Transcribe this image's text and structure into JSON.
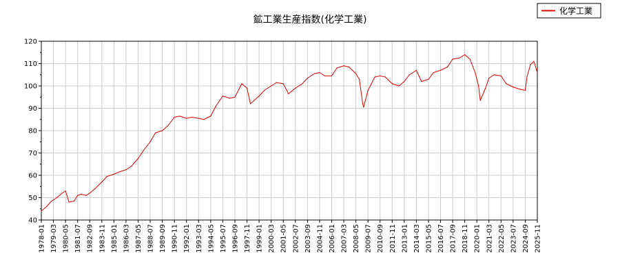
{
  "chart_data": {
    "type": "line",
    "title": "鉱工業生産指数(化学工業)",
    "xlabel": "",
    "ylabel": "",
    "ylim": [
      40,
      120
    ],
    "y_ticks": [
      "40",
      "50",
      "60",
      "70",
      "80",
      "90",
      "100",
      "110",
      "120"
    ],
    "x_ticks": [
      "1978-01",
      "1979-03",
      "1980-05",
      "1981-07",
      "1982-09",
      "1983-11",
      "1985-01",
      "1986-03",
      "1987-05",
      "1988-07",
      "1989-09",
      "1990-11",
      "1992-01",
      "1993-03",
      "1994-05",
      "1995-07",
      "1996-09",
      "1997-11",
      "1999-01",
      "2000-03",
      "2001-05",
      "2002-07",
      "2003-09",
      "2004-11",
      "2006-01",
      "2007-03",
      "2008-05",
      "2009-07",
      "2010-09",
      "2011-11",
      "2013-01",
      "2014-03",
      "2015-05",
      "2016-07",
      "2017-09",
      "2018-11",
      "2020-01",
      "2021-03",
      "2022-05",
      "2023-07",
      "2024-09",
      "2025-11"
    ],
    "x_range": [
      "1978-01",
      "2025-11"
    ],
    "grid": true,
    "legend_position": "top-right",
    "series": [
      {
        "name": "化学工業",
        "color": "#dd0000",
        "points": [
          [
            "1978-01",
            44.0
          ],
          [
            "1978-07",
            46.0
          ],
          [
            "1979-01",
            48.5
          ],
          [
            "1979-07",
            50.0
          ],
          [
            "1980-01",
            52.0
          ],
          [
            "1980-05",
            53.0
          ],
          [
            "1980-09",
            48.0
          ],
          [
            "1981-03",
            48.5
          ],
          [
            "1981-07",
            51.0
          ],
          [
            "1981-11",
            51.5
          ],
          [
            "1982-05",
            51.0
          ],
          [
            "1982-09",
            52.0
          ],
          [
            "1983-03",
            54.0
          ],
          [
            "1983-11",
            57.0
          ],
          [
            "1984-05",
            59.5
          ],
          [
            "1985-01",
            60.5
          ],
          [
            "1985-07",
            61.5
          ],
          [
            "1986-03",
            62.5
          ],
          [
            "1986-09",
            64.0
          ],
          [
            "1987-05",
            67.5
          ],
          [
            "1987-11",
            71.0
          ],
          [
            "1988-07",
            75.0
          ],
          [
            "1989-01",
            79.0
          ],
          [
            "1989-09",
            80.0
          ],
          [
            "1990-03",
            82.0
          ],
          [
            "1990-11",
            86.0
          ],
          [
            "1991-05",
            86.5
          ],
          [
            "1992-01",
            85.5
          ],
          [
            "1992-07",
            86.0
          ],
          [
            "1993-03",
            85.5
          ],
          [
            "1993-09",
            85.0
          ],
          [
            "1994-05",
            86.5
          ],
          [
            "1994-11",
            91.0
          ],
          [
            "1995-07",
            95.5
          ],
          [
            "1996-03",
            94.5
          ],
          [
            "1996-09",
            95.0
          ],
          [
            "1997-05",
            101.0
          ],
          [
            "1997-11",
            99.0
          ],
          [
            "1998-03",
            92.0
          ],
          [
            "1999-01",
            95.5
          ],
          [
            "1999-07",
            98.0
          ],
          [
            "2000-03",
            100.0
          ],
          [
            "2000-09",
            101.5
          ],
          [
            "2001-05",
            101.0
          ],
          [
            "2001-11",
            96.5
          ],
          [
            "2002-07",
            99.0
          ],
          [
            "2003-03",
            101.0
          ],
          [
            "2003-09",
            103.5
          ],
          [
            "2004-05",
            105.5
          ],
          [
            "2004-11",
            106.0
          ],
          [
            "2005-05",
            104.5
          ],
          [
            "2006-01",
            104.5
          ],
          [
            "2006-07",
            108.0
          ],
          [
            "2007-03",
            109.0
          ],
          [
            "2007-09",
            108.5
          ],
          [
            "2008-05",
            105.5
          ],
          [
            "2008-09",
            103.0
          ],
          [
            "2009-01",
            92.0
          ],
          [
            "2009-02",
            90.5
          ],
          [
            "2009-07",
            98.0
          ],
          [
            "2010-03",
            104.0
          ],
          [
            "2010-09",
            104.5
          ],
          [
            "2011-03",
            104.0
          ],
          [
            "2011-11",
            101.0
          ],
          [
            "2012-07",
            100.0
          ],
          [
            "2013-01",
            102.0
          ],
          [
            "2013-07",
            105.0
          ],
          [
            "2014-03",
            107.0
          ],
          [
            "2014-09",
            102.0
          ],
          [
            "2015-05",
            103.0
          ],
          [
            "2015-11",
            106.0
          ],
          [
            "2016-07",
            107.0
          ],
          [
            "2017-03",
            108.5
          ],
          [
            "2017-09",
            112.0
          ],
          [
            "2018-05",
            112.5
          ],
          [
            "2018-11",
            114.0
          ],
          [
            "2019-05",
            112.0
          ],
          [
            "2019-11",
            106.0
          ],
          [
            "2020-03",
            100.0
          ],
          [
            "2020-05",
            93.5
          ],
          [
            "2020-11",
            99.0
          ],
          [
            "2021-03",
            103.5
          ],
          [
            "2021-09",
            105.0
          ],
          [
            "2022-05",
            104.5
          ],
          [
            "2022-11",
            101.0
          ],
          [
            "2023-07",
            99.5
          ],
          [
            "2024-03",
            98.5
          ],
          [
            "2024-09",
            98.0
          ],
          [
            "2024-11",
            104.0
          ],
          [
            "2025-03",
            109.5
          ],
          [
            "2025-07",
            111.0
          ],
          [
            "2025-11",
            106.0
          ]
        ]
      }
    ]
  }
}
